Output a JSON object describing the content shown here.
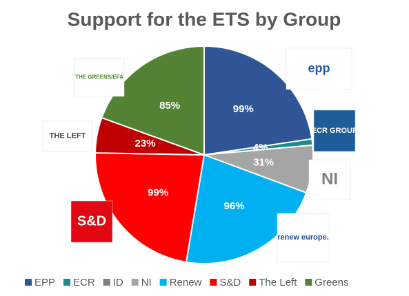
{
  "chart_data": {
    "type": "pie",
    "title": "Support for the ETS by Group",
    "categories": [
      "EPP",
      "ECR",
      "ID",
      "NI",
      "Renew",
      "S&D",
      "The Left",
      "Greens"
    ],
    "values": [
      99,
      4,
      0,
      31,
      96,
      99,
      23,
      85
    ],
    "value_labels": [
      "99%",
      "4%",
      null,
      "31%",
      "96%",
      "99%",
      "23%",
      "85%"
    ],
    "colors": [
      "#2f5597",
      "#1a8a8a",
      "#7f7f7f",
      "#a5a5a5",
      "#00b0f0",
      "#ff0000",
      "#c00000",
      "#548235"
    ],
    "legend": "bottom",
    "logos": [
      "epp",
      "ECR GROUP",
      "NI",
      "renew europe.",
      "S&D",
      "THE LEFT",
      "THE GREENS/EFA"
    ]
  }
}
